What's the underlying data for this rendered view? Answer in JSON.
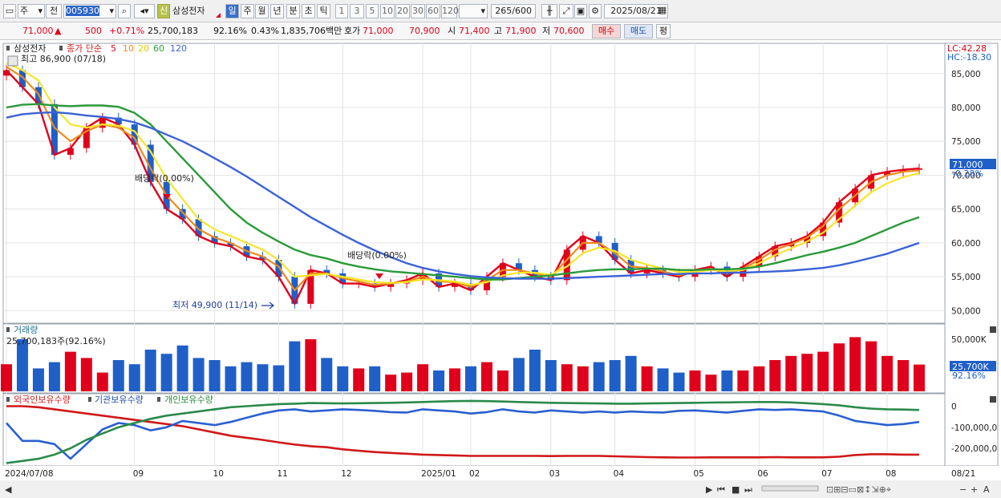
{
  "toolbar": {
    "period_type": "주",
    "scope": "전",
    "code": "005930",
    "credit_badge": "신",
    "stock_name": "삼성전자",
    "period_tabs": [
      "일",
      "주",
      "월",
      "년",
      "분",
      "초",
      "틱"
    ],
    "active_tab": "일",
    "interval_buttons": [
      "1",
      "3",
      "5",
      "10",
      "20",
      "30",
      "60",
      "120"
    ],
    "count": "265",
    "count_max": "/600",
    "date": "2025/08/21"
  },
  "quote": {
    "price": "71,000",
    "change_arrow": "▲",
    "change": "500",
    "change_pct": "+0.71%",
    "volume": "25,700,183",
    "volume_ratio": "92.16%",
    "turnover": "0.43%",
    "amount": "1,835,706백만",
    "hoga_label": "호가",
    "ask": "71,000",
    "bid": "70,900",
    "open_label": "시",
    "open": "71,400",
    "high_label": "고",
    "high": "71,900",
    "low_label": "저",
    "low": "70,600",
    "buy_label": "매수",
    "sell_label": "매도",
    "avg_label": "평"
  },
  "price_panel": {
    "legend_name": "삼성전자",
    "legend_ma": "종가 단순",
    "ma_periods": [
      "5",
      "10",
      "20",
      "60",
      "120"
    ],
    "max_label": "최고 86,900 (07/18)",
    "min_label": "최저 49,900 (11/14)",
    "dividend_label_1": "배당락(0.00%)",
    "dividend_label_2": "배당락(0.00%)",
    "lc_label": "LC:42.28",
    "hc_label": "HC:-18.30",
    "current_price": "71,000",
    "current_pct": "-0.28%",
    "y_ticks": [
      "85,000",
      "80,000",
      "75,000",
      "70,000",
      "65,000",
      "60,000",
      "55,000",
      "50,000"
    ]
  },
  "volume_panel": {
    "title": "거래량",
    "value_label": "25,700,183주(92.16%)",
    "y_ticks": [
      "50,000K"
    ],
    "current": "25,700K",
    "current_pct": "92.16%"
  },
  "holdings_panel": {
    "legend": [
      "외국인보유수량",
      "기관보유수량",
      "개인보유수량"
    ],
    "y_ticks": [
      "0",
      "-100,000,0",
      "-200,000,0"
    ]
  },
  "x_axis": {
    "labels": [
      "2024/07/08",
      "09",
      "10",
      "11",
      "12",
      "2025/01",
      "02",
      "03",
      "04",
      "05",
      "06",
      "07",
      "08"
    ],
    "right_label": "08/21"
  },
  "colors": {
    "up": "#e0001b",
    "down": "#1f5fc8",
    "ma5": "#e0001b",
    "ma10": "#ee8a1a",
    "ma20": "#f5e628",
    "ma60": "#2a9a3a",
    "ma120": "#3a62d6"
  },
  "chart_data": {
    "type": "line",
    "title": "",
    "x": [
      "2024/07/08",
      "2024/07/15",
      "2024/07/22",
      "2024/07/29",
      "2024/08/05",
      "2024/08/12",
      "2024/08/19",
      "2024/08/26",
      "2024/09/02",
      "2024/09/09",
      "2024/09/16",
      "2024/09/23",
      "2024/09/30",
      "2024/10/07",
      "2024/10/14",
      "2024/10/21",
      "2024/10/28",
      "2024/11/04",
      "2024/11/11",
      "2024/11/18",
      "2024/11/25",
      "2024/12/02",
      "2024/12/09",
      "2024/12/16",
      "2024/12/23",
      "2024/12/30",
      "2025/01/06",
      "2025/01/13",
      "2025/01/20",
      "2025/02/03",
      "2025/02/10",
      "2025/02/17",
      "2025/02/24",
      "2025/03/03",
      "2025/03/10",
      "2025/03/17",
      "2025/03/24",
      "2025/03/31",
      "2025/04/07",
      "2025/04/14",
      "2025/04/21",
      "2025/04/28",
      "2025/05/05",
      "2025/05/12",
      "2025/05/19",
      "2025/05/26",
      "2025/06/02",
      "2025/06/09",
      "2025/06/16",
      "2025/06/23",
      "2025/06/30",
      "2025/07/07",
      "2025/07/14",
      "2025/07/21",
      "2025/07/28",
      "2025/08/04",
      "2025/08/11",
      "2025/08/18"
    ],
    "series": [
      {
        "name": "5",
        "values": [
          85500,
          83000,
          80500,
          73000,
          74000,
          77000,
          78500,
          77500,
          74500,
          69000,
          65000,
          63500,
          61000,
          60000,
          59500,
          58000,
          57500,
          55000,
          51000,
          56000,
          55500,
          54000,
          54000,
          53500,
          54000,
          54500,
          55500,
          53500,
          54000,
          53000,
          55000,
          57000,
          56000,
          55000,
          54500,
          59000,
          61000,
          60000,
          57500,
          55500,
          56000,
          55500,
          55000,
          56000,
          56500,
          55000,
          56500,
          58000,
          59500,
          60000,
          61000,
          63000,
          66000,
          68000,
          70000,
          70500,
          70800,
          71000
        ]
      },
      {
        "name": "10",
        "values": [
          86000,
          84500,
          82000,
          77000,
          75000,
          76500,
          77500,
          77000,
          75500,
          71000,
          67000,
          64500,
          62000,
          60800,
          60000,
          58800,
          58000,
          56500,
          53000,
          55500,
          55500,
          54800,
          54300,
          53800,
          54000,
          54300,
          55000,
          54300,
          54200,
          53500,
          54500,
          56000,
          56000,
          55500,
          55000,
          57500,
          60000,
          60000,
          58500,
          56500,
          56300,
          55800,
          55200,
          55800,
          56200,
          55500,
          56200,
          57500,
          59000,
          59800,
          60800,
          62500,
          65000,
          67000,
          69000,
          70000,
          70500,
          70700
        ]
      },
      {
        "name": "20",
        "values": [
          86500,
          85500,
          84000,
          80000,
          77500,
          77000,
          77500,
          77300,
          76500,
          73500,
          69500,
          66500,
          63500,
          62000,
          61000,
          60000,
          59000,
          57500,
          55000,
          55200,
          55400,
          55000,
          54600,
          54200,
          54100,
          54200,
          54600,
          54500,
          54300,
          53800,
          54200,
          55200,
          55600,
          55600,
          55300,
          56500,
          58500,
          59300,
          58800,
          57500,
          56800,
          56200,
          55700,
          55700,
          56000,
          55800,
          56000,
          57000,
          58200,
          59200,
          60200,
          61500,
          63500,
          65500,
          67500,
          68800,
          69700,
          70300
        ]
      },
      {
        "name": "60",
        "values": [
          80000,
          80400,
          80500,
          80300,
          80200,
          80300,
          80300,
          80100,
          79200,
          77500,
          75000,
          72500,
          70000,
          67500,
          65000,
          63000,
          61500,
          60200,
          59000,
          58200,
          57700,
          57000,
          56500,
          56100,
          55800,
          55600,
          55400,
          55200,
          55000,
          54800,
          54600,
          54600,
          54800,
          55000,
          55200,
          55500,
          55800,
          56000,
          56100,
          56100,
          56200,
          56200,
          56000,
          56000,
          56100,
          56100,
          56200,
          56500,
          57000,
          57600,
          58200,
          58700,
          59300,
          60000,
          61000,
          62000,
          63000,
          63800
        ]
      },
      {
        "name": "120",
        "values": [
          78500,
          79000,
          79200,
          79300,
          79100,
          78800,
          78600,
          78300,
          77800,
          77000,
          76000,
          75000,
          73800,
          72500,
          71200,
          69800,
          68300,
          66800,
          65300,
          63800,
          62500,
          61200,
          60000,
          58900,
          57900,
          57000,
          56300,
          55800,
          55400,
          55100,
          54900,
          54800,
          54700,
          54700,
          54700,
          54800,
          54900,
          55000,
          55100,
          55200,
          55300,
          55400,
          55400,
          55500,
          55500,
          55600,
          55600,
          55700,
          55800,
          55900,
          56100,
          56300,
          56700,
          57200,
          57800,
          58400,
          59200,
          60000
        ]
      },
      {
        "name": "외국인보유수량",
        "values": [
          0,
          0,
          -5000000,
          -15000000,
          -25000000,
          -35000000,
          -45000000,
          -55000000,
          -65000000,
          -75000000,
          -85000000,
          -95000000,
          -110000000,
          -125000000,
          -140000000,
          -150000000,
          -160000000,
          -172000000,
          -182000000,
          -190000000,
          -195000000,
          -205000000,
          -212000000,
          -218000000,
          -222000000,
          -226000000,
          -230000000,
          -232000000,
          -234000000,
          -236000000,
          -236000000,
          -236000000,
          -236000000,
          -236000000,
          -237000000,
          -236000000,
          -236000000,
          -236000000,
          -238000000,
          -240000000,
          -242000000,
          -243000000,
          -244000000,
          -244000000,
          -243000000,
          -243000000,
          -243000000,
          -243000000,
          -242000000,
          -243000000,
          -243000000,
          -243000000,
          -240000000,
          -232000000,
          -228000000,
          -228000000,
          -230000000,
          -230000000
        ]
      },
      {
        "name": "기관보유수량",
        "values": [
          -80000000,
          -165000000,
          -165000000,
          -180000000,
          -250000000,
          -180000000,
          -110000000,
          -80000000,
          -90000000,
          -115000000,
          -100000000,
          -70000000,
          -80000000,
          -90000000,
          -75000000,
          -55000000,
          -35000000,
          -20000000,
          -15000000,
          -25000000,
          -20000000,
          -15000000,
          -18000000,
          -22000000,
          -28000000,
          -30000000,
          -15000000,
          -20000000,
          -25000000,
          -35000000,
          -28000000,
          -15000000,
          -25000000,
          -30000000,
          -20000000,
          -25000000,
          -30000000,
          -25000000,
          -30000000,
          -25000000,
          -28000000,
          -30000000,
          -22000000,
          -20000000,
          -25000000,
          -30000000,
          -22000000,
          -15000000,
          -18000000,
          -15000000,
          -20000000,
          -25000000,
          -45000000,
          -70000000,
          -80000000,
          -90000000,
          -85000000,
          -75000000
        ]
      },
      {
        "name": "개인보유수량",
        "values": [
          -270000000,
          -260000000,
          -250000000,
          -230000000,
          -200000000,
          -160000000,
          -130000000,
          -100000000,
          -80000000,
          -60000000,
          -45000000,
          -35000000,
          -25000000,
          -15000000,
          -5000000,
          0,
          5000000,
          10000000,
          12000000,
          15000000,
          14000000,
          13000000,
          14000000,
          15000000,
          16000000,
          18000000,
          20000000,
          22000000,
          24000000,
          25000000,
          24000000,
          22000000,
          20000000,
          18000000,
          16000000,
          15000000,
          14000000,
          13000000,
          12000000,
          12000000,
          13000000,
          14000000,
          15000000,
          16000000,
          17000000,
          18000000,
          19000000,
          20000000,
          20000000,
          18000000,
          14000000,
          10000000,
          4000000,
          -5000000,
          -12000000,
          -15000000,
          -16000000,
          -18000000
        ]
      }
    ],
    "volume": [
      26000000,
      50000000,
      22000000,
      28000000,
      38000000,
      32000000,
      18000000,
      30000000,
      26000000,
      40000000,
      36000000,
      44000000,
      32000000,
      30000000,
      24000000,
      28000000,
      26000000,
      25000000,
      48000000,
      50000000,
      32000000,
      24000000,
      22000000,
      24000000,
      16000000,
      18000000,
      26000000,
      20000000,
      22000000,
      24000000,
      28000000,
      20000000,
      32000000,
      40000000,
      30000000,
      26000000,
      24000000,
      28000000,
      30000000,
      34000000,
      24000000,
      22000000,
      18000000,
      20000000,
      16000000,
      20000000,
      20000000,
      24000000,
      30000000,
      34000000,
      36000000,
      38000000,
      46000000,
      52000000,
      48000000,
      34000000,
      30000000,
      25700183
    ],
    "ylim": [
      48500,
      89000
    ],
    "volume_ylim": [
      0,
      60000000
    ],
    "holdings_ylim": [
      -280000000,
      40000000
    ],
    "grid": true
  }
}
